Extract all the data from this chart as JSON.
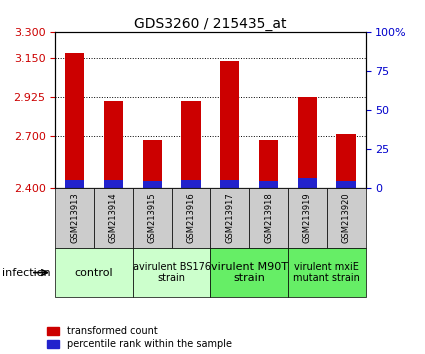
{
  "title": "GDS3260 / 215435_at",
  "samples": [
    "GSM213913",
    "GSM213914",
    "GSM213915",
    "GSM213916",
    "GSM213917",
    "GSM213918",
    "GSM213919",
    "GSM213920"
  ],
  "red_values": [
    3.175,
    2.9,
    2.675,
    2.9,
    3.13,
    2.675,
    2.925,
    2.71
  ],
  "blue_pct": [
    5,
    5,
    4,
    5,
    5,
    4,
    6,
    4
  ],
  "ymin": 2.4,
  "ymax": 3.3,
  "y_ticks": [
    2.4,
    2.7,
    2.925,
    3.15,
    3.3
  ],
  "right_yticks": [
    0,
    25,
    50,
    75,
    100
  ],
  "bar_color_red": "#cc0000",
  "bar_color_blue": "#2222cc",
  "bar_width": 0.5,
  "left_tick_color": "#cc0000",
  "right_tick_color": "#0000cc",
  "title_fontsize": 10,
  "group_labels": [
    "control",
    "avirulent BS176\nstrain",
    "virulent M90T\nstrain",
    "virulent mxiE\nmutant strain"
  ],
  "group_ranges": [
    [
      0,
      2
    ],
    [
      2,
      4
    ],
    [
      4,
      6
    ],
    [
      6,
      8
    ]
  ],
  "group_colors": [
    "#ccffcc",
    "#ccffcc",
    "#66ee66",
    "#66ee66"
  ],
  "group_fontsizes": [
    8,
    7,
    8,
    7
  ],
  "sample_box_color": "#cccccc",
  "legend_red": "transformed count",
  "legend_blue": "percentile rank within the sample",
  "infection_label": "infection"
}
